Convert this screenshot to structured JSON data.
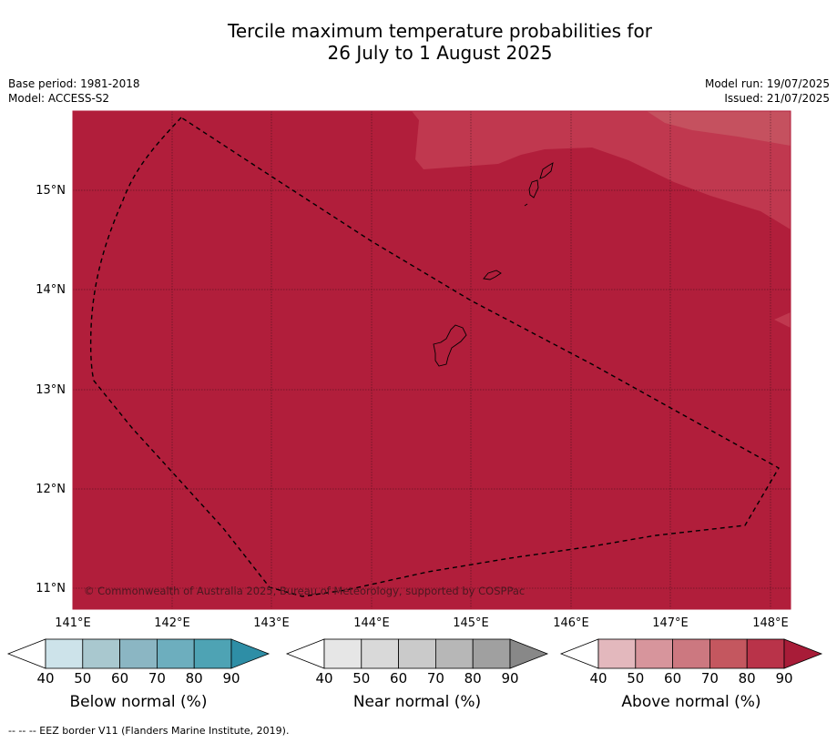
{
  "title": {
    "line1": "Tercile maximum temperature probabilities for",
    "line2": "26 July to 1 August 2025"
  },
  "meta": {
    "base_period": "Base period: 1981-2018",
    "model": "Model: ACCESS-S2",
    "model_run": "Model run: 19/07/2025",
    "issued": "Issued: 21/07/2025"
  },
  "map": {
    "lat_labels": [
      "15°N",
      "14°N",
      "13°N",
      "12°N",
      "11°N"
    ],
    "lon_labels": [
      "141°E",
      "142°E",
      "143°E",
      "144°E",
      "145°E",
      "146°E",
      "147°E",
      "148°E"
    ],
    "copyright": "© Commonwealth of Australia 2025, Bureau of Meteorology, supported by COSPPac",
    "colors": {
      "above_80": "#b11e3b",
      "above_70": "#c0384f",
      "above_60": "#c5515f"
    }
  },
  "colorbars": [
    {
      "label": "Below normal (%)",
      "ticks": [
        "40",
        "50",
        "60",
        "70",
        "80",
        "90"
      ],
      "colors": [
        "#ffffff",
        "#cde3ea",
        "#a9c8cf",
        "#8bb6c3",
        "#6daebe",
        "#4ea3b4",
        "#2e8ea6"
      ]
    },
    {
      "label": "Near normal (%)",
      "ticks": [
        "40",
        "50",
        "60",
        "70",
        "80",
        "90"
      ],
      "colors": [
        "#ffffff",
        "#e6e6e6",
        "#d9d9d9",
        "#cacaca",
        "#b7b7b7",
        "#a0a0a0",
        "#888888"
      ]
    },
    {
      "label": "Above normal (%)",
      "ticks": [
        "40",
        "50",
        "60",
        "70",
        "80",
        "90"
      ],
      "colors": [
        "#ffffff",
        "#e3b8bd",
        "#d7959c",
        "#cc7880",
        "#c4575f",
        "#b93349",
        "#a81c38"
      ]
    }
  ],
  "footnote": "--  --  -- EEZ border V11 (Flanders Marine Institute, 2019)."
}
